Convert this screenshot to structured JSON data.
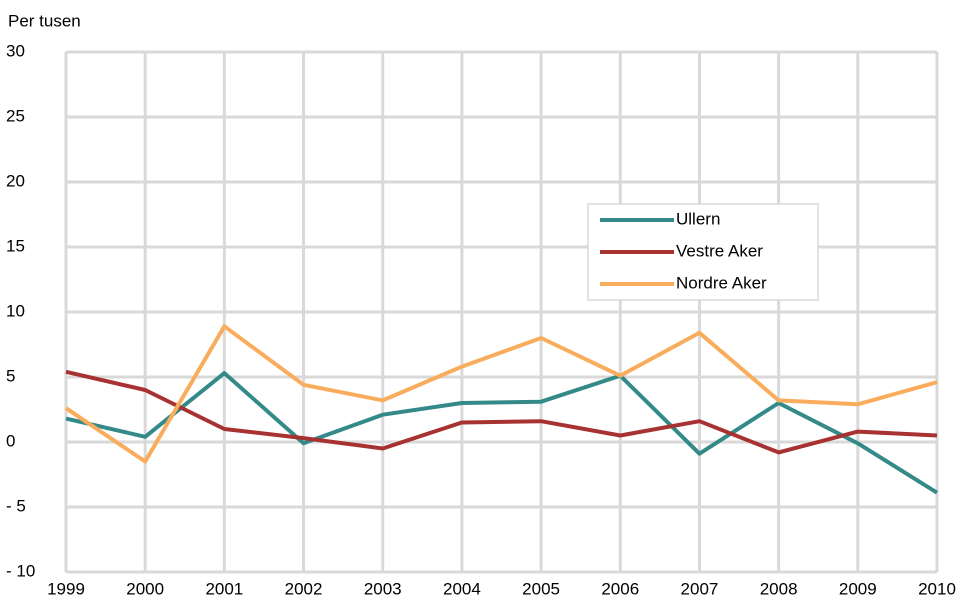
{
  "chart_data": {
    "type": "line",
    "y_label": "Per tusen",
    "categories": [
      "1999",
      "2000",
      "2001",
      "2002",
      "2003",
      "2004",
      "2005",
      "2006",
      "2007",
      "2008",
      "2009",
      "2010"
    ],
    "series": [
      {
        "name": "Ullern",
        "color": "#348a88",
        "values": [
          1.8,
          0.4,
          5.3,
          -0.1,
          2.1,
          3.0,
          3.1,
          5.1,
          -0.9,
          3.0,
          -0.1,
          -3.9
        ]
      },
      {
        "name": "Vestre Aker",
        "color": "#a83232",
        "values": [
          5.4,
          4.0,
          1.0,
          0.3,
          -0.5,
          1.5,
          1.6,
          0.5,
          1.6,
          -0.8,
          0.8,
          0.5
        ]
      },
      {
        "name": "Nordre Aker",
        "color": "#f9ad5c",
        "values": [
          2.6,
          -1.5,
          8.9,
          4.4,
          3.2,
          5.8,
          8.0,
          5.1,
          8.4,
          3.2,
          2.9,
          4.6
        ]
      }
    ],
    "ylim": [
      -10,
      30
    ],
    "yticks": [
      {
        "value": -10,
        "label": "- 10"
      },
      {
        "value": -5,
        "label": "- 5"
      },
      0,
      5,
      10,
      15,
      20,
      25,
      30
    ],
    "grid": true,
    "legend": "upper right"
  }
}
